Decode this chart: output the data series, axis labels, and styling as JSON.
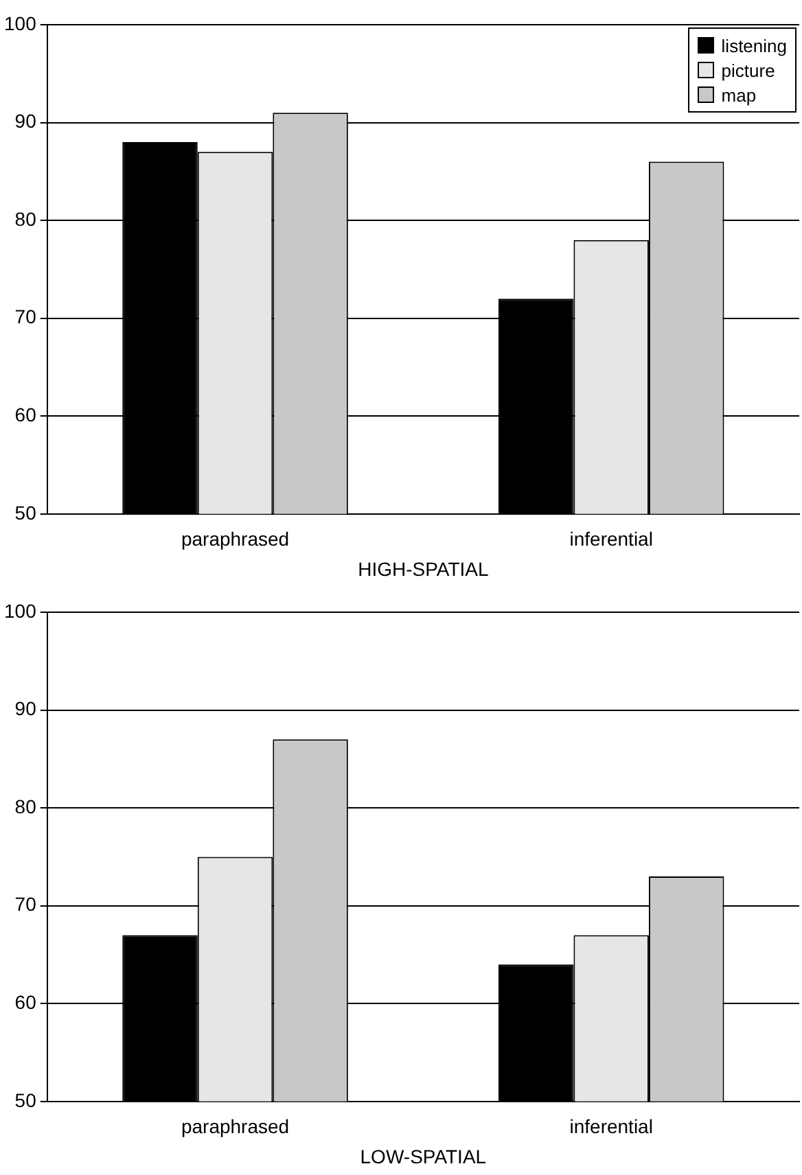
{
  "chart_data": [
    {
      "type": "bar",
      "xlabel": "HIGH-SPATIAL",
      "categories": [
        "paraphrased",
        "inferential"
      ],
      "series": [
        {
          "name": "listening",
          "color": "#000000",
          "values": [
            88,
            72
          ]
        },
        {
          "name": "picture",
          "color": "#e6e6e6",
          "values": [
            87,
            78
          ]
        },
        {
          "name": "map",
          "color": "#c8c8c8",
          "values": [
            91,
            86
          ]
        }
      ],
      "ylim": [
        50,
        100
      ],
      "yticks": [
        50,
        60,
        70,
        80,
        90,
        100
      ],
      "grid": "y",
      "legend": "top right"
    },
    {
      "type": "bar",
      "xlabel": "LOW-SPATIAL",
      "categories": [
        "paraphrased",
        "inferential"
      ],
      "series": [
        {
          "color": "#000000",
          "values": [
            67,
            64
          ]
        },
        {
          "color": "#e6e6e6",
          "values": [
            75,
            67
          ]
        },
        {
          "color": "#c8c8c8",
          "values": [
            87,
            73
          ]
        }
      ],
      "ylim": [
        50,
        100
      ],
      "yticks": [
        50,
        60,
        70,
        80,
        90,
        100
      ],
      "grid": "y",
      "legend": false
    }
  ]
}
